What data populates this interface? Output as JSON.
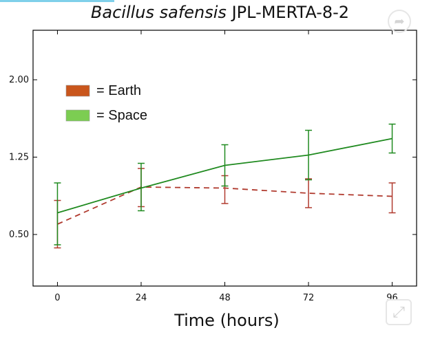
{
  "title": {
    "italic": "Bacillus safensis",
    "rest": " JPL-MERTA-8-2"
  },
  "chart_data": {
    "type": "line",
    "title": "Bacillus safensis JPL-MERTA-8-2",
    "xlabel": "Time (hours)",
    "ylabel": "",
    "x": [
      0,
      24,
      48,
      72,
      96
    ],
    "xticks": [
      "0",
      "24",
      "48",
      "72",
      "96"
    ],
    "yticks": [
      {
        "value": 0.5,
        "label": "0.50"
      },
      {
        "value": 1.25,
        "label": "1.25"
      },
      {
        "value": 2.0,
        "label": "2.00"
      }
    ],
    "xlim": [
      -7,
      103
    ],
    "ylim": [
      0.0,
      2.48
    ],
    "grid": false,
    "legend_position": "top-left",
    "series": [
      {
        "name": "Earth",
        "color": "#b03a2e",
        "swatch": "#c9561c",
        "linestyle": "dashed",
        "values": [
          0.6,
          0.96,
          0.95,
          0.9,
          0.87
        ],
        "err_low": [
          0.37,
          0.77,
          0.8,
          0.76,
          0.71
        ],
        "err_high": [
          0.83,
          1.14,
          1.07,
          1.04,
          1.0
        ]
      },
      {
        "name": "Space",
        "color": "#1f8a1f",
        "swatch": "#7ccd52",
        "linestyle": "solid",
        "values": [
          0.71,
          0.95,
          1.17,
          1.27,
          1.43
        ],
        "err_low": [
          0.4,
          0.73,
          0.97,
          1.03,
          1.29
        ],
        "err_high": [
          1.0,
          1.19,
          1.37,
          1.51,
          1.57
        ]
      }
    ]
  },
  "legend": [
    {
      "label": "= Earth"
    },
    {
      "label": "= Space"
    }
  ],
  "controls": {
    "share_icon": "share-icon",
    "expand_icon": "expand-icon"
  },
  "colors": {
    "accent_line": "#7fd0ea"
  }
}
